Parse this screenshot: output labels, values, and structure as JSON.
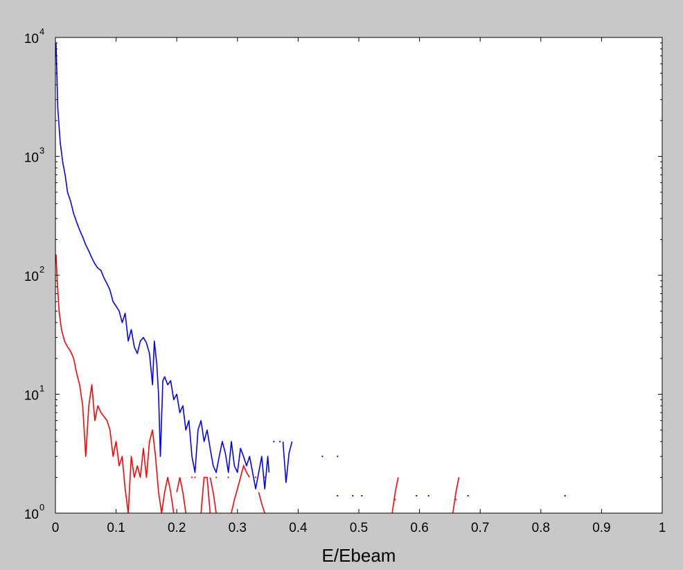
{
  "chart_data": {
    "type": "line",
    "title": "",
    "xlabel": "E/Ebeam",
    "ylabel": "",
    "xscale": "linear",
    "yscale": "log",
    "xlim": [
      0,
      1
    ],
    "ylim": [
      1,
      10000
    ],
    "grid": false,
    "legend": "none",
    "x_ticks": [
      0,
      0.1,
      0.2,
      0.3,
      0.4,
      0.5,
      0.6,
      0.7,
      0.8,
      0.9,
      1
    ],
    "x_tick_labels": [
      "0",
      "0.1",
      "0.2",
      "0.3",
      "0.4",
      "0.5",
      "0.6",
      "0.7",
      "0.8",
      "0.9",
      "1"
    ],
    "y_ticks": [
      {
        "value": 1,
        "base": "10",
        "exp": "0"
      },
      {
        "value": 10,
        "base": "10",
        "exp": "1"
      },
      {
        "value": 100,
        "base": "10",
        "exp": "2"
      },
      {
        "value": 1000,
        "base": "10",
        "exp": "3"
      },
      {
        "value": 10000,
        "base": "10",
        "exp": "4"
      }
    ],
    "background_color": "#c8c8c8",
    "plot_background": "#ffffff",
    "series": [
      {
        "color": "#0000ff",
        "points": [
          [
            0.001,
            9000
          ],
          [
            0.004,
            2500
          ],
          [
            0.008,
            1300
          ],
          [
            0.012,
            900
          ],
          [
            0.016,
            700
          ],
          [
            0.02,
            500
          ],
          [
            0.025,
            420
          ],
          [
            0.03,
            330
          ],
          [
            0.035,
            280
          ],
          [
            0.04,
            240
          ],
          [
            0.045,
            210
          ],
          [
            0.05,
            180
          ],
          [
            0.055,
            160
          ],
          [
            0.06,
            140
          ],
          [
            0.065,
            125
          ],
          [
            0.07,
            115
          ],
          [
            0.075,
            110
          ],
          [
            0.08,
            95
          ],
          [
            0.085,
            85
          ],
          [
            0.09,
            75
          ],
          [
            0.095,
            60
          ],
          [
            0.1,
            55
          ],
          [
            0.105,
            50
          ],
          [
            0.11,
            40
          ],
          [
            0.115,
            48
          ],
          [
            0.12,
            28
          ],
          [
            0.125,
            35
          ],
          [
            0.13,
            25
          ],
          [
            0.135,
            22
          ],
          [
            0.14,
            28
          ],
          [
            0.145,
            30
          ],
          [
            0.15,
            27
          ],
          [
            0.155,
            22
          ],
          [
            0.16,
            12
          ],
          [
            0.163,
            28
          ],
          [
            0.167,
            18
          ],
          [
            0.17,
            10
          ],
          [
            0.173,
            3
          ],
          [
            0.177,
            13
          ],
          [
            0.18,
            14
          ],
          [
            0.185,
            12
          ],
          [
            0.19,
            13
          ],
          [
            0.195,
            9
          ],
          [
            0.2,
            10
          ],
          [
            0.205,
            7
          ],
          [
            0.21,
            8
          ],
          [
            0.215,
            5
          ],
          [
            0.22,
            6
          ],
          [
            0.225,
            3
          ],
          [
            0.23,
            2.2
          ],
          [
            0.235,
            5
          ],
          [
            0.24,
            6
          ],
          [
            0.245,
            4
          ],
          [
            0.25,
            5
          ],
          [
            0.255,
            3.5
          ],
          [
            0.26,
            2.5
          ],
          [
            0.265,
            2.2
          ],
          [
            0.27,
            3
          ],
          [
            0.275,
            4
          ],
          [
            0.28,
            3.2
          ],
          [
            0.285,
            2.2
          ],
          [
            0.29,
            4
          ],
          [
            0.295,
            2.5
          ],
          [
            0.3,
            2.2
          ],
          [
            0.305,
            3.5
          ],
          [
            0.31,
            3
          ],
          [
            0.315,
            2.5
          ],
          [
            0.32,
            3
          ],
          [
            0.325,
            2.2
          ],
          [
            0.33,
            1.6
          ],
          [
            0.335,
            2.2
          ],
          [
            0.34,
            3
          ],
          [
            0.345,
            1.6
          ],
          [
            0.35,
            3
          ],
          [
            0.352,
            2.2
          ]
        ],
        "segments_extra": [
          [
            [
              0.375,
              4
            ],
            [
              0.38,
              1.8
            ],
            [
              0.385,
              3.2
            ],
            [
              0.39,
              4
            ]
          ]
        ],
        "dots": [
          [
            0.36,
            4
          ],
          [
            0.37,
            4
          ],
          [
            0.44,
            3
          ],
          [
            0.465,
            3
          ],
          [
            0.465,
            1.4
          ],
          [
            0.49,
            1.4
          ],
          [
            0.505,
            1.4
          ],
          [
            0.595,
            1.4
          ],
          [
            0.615,
            1.4
          ],
          [
            0.68,
            1.4
          ],
          [
            0.84,
            1.4
          ]
        ]
      },
      {
        "color": "#ff0000",
        "points": [
          [
            0.001,
            150
          ],
          [
            0.003,
            90
          ],
          [
            0.006,
            50
          ],
          [
            0.01,
            35
          ],
          [
            0.015,
            28
          ],
          [
            0.02,
            25
          ],
          [
            0.025,
            23
          ],
          [
            0.03,
            20
          ],
          [
            0.035,
            15
          ],
          [
            0.04,
            12
          ],
          [
            0.045,
            8
          ],
          [
            0.05,
            3
          ],
          [
            0.055,
            8
          ],
          [
            0.06,
            12
          ],
          [
            0.065,
            6
          ],
          [
            0.07,
            8
          ],
          [
            0.075,
            7
          ],
          [
            0.08,
            6.5
          ],
          [
            0.085,
            6
          ],
          [
            0.09,
            5
          ],
          [
            0.095,
            3
          ],
          [
            0.1,
            4
          ],
          [
            0.105,
            2.5
          ],
          [
            0.11,
            3
          ],
          [
            0.115,
            1.6
          ],
          [
            0.12,
            1
          ],
          [
            0.125,
            3
          ],
          [
            0.13,
            2
          ],
          [
            0.135,
            2.5
          ],
          [
            0.14,
            2
          ],
          [
            0.145,
            3.5
          ],
          [
            0.15,
            2
          ],
          [
            0.155,
            4
          ],
          [
            0.16,
            5
          ],
          [
            0.165,
            3
          ],
          [
            0.17,
            1.5
          ],
          [
            0.175,
            1
          ],
          [
            0.18,
            1.5
          ],
          [
            0.185,
            2
          ],
          [
            0.19,
            1.5
          ],
          [
            0.195,
            1
          ]
        ],
        "segments_extra": [
          [
            [
              0.2,
              1.5
            ],
            [
              0.205,
              2
            ],
            [
              0.21,
              1.5
            ],
            [
              0.215,
              1
            ]
          ],
          [
            [
              0.24,
              1
            ],
            [
              0.245,
              2
            ],
            [
              0.25,
              2
            ],
            [
              0.255,
              1
            ]
          ],
          [
            [
              0.255,
              2
            ],
            [
              0.26,
              1.5
            ],
            [
              0.265,
              1
            ]
          ],
          [
            [
              0.29,
              1
            ],
            [
              0.295,
              1.3
            ],
            [
              0.3,
              1.6
            ],
            [
              0.305,
              2
            ],
            [
              0.31,
              2.5
            ],
            [
              0.315,
              2.2
            ],
            [
              0.32,
              2
            ]
          ],
          [
            [
              0.335,
              1.5
            ],
            [
              0.34,
              1.2
            ],
            [
              0.345,
              1
            ]
          ],
          [
            [
              0.555,
              1
            ],
            [
              0.56,
              1.5
            ],
            [
              0.565,
              2
            ]
          ],
          [
            [
              0.655,
              1
            ],
            [
              0.66,
              1.5
            ],
            [
              0.665,
              2
            ]
          ]
        ],
        "dots": [
          [
            0.225,
            2
          ],
          [
            0.23,
            2
          ],
          [
            0.265,
            2
          ],
          [
            0.285,
            2
          ],
          [
            0.33,
            2
          ],
          [
            0.345,
            2
          ],
          [
            0.56,
            1.3
          ],
          [
            0.66,
            1.3
          ]
        ]
      }
    ]
  }
}
